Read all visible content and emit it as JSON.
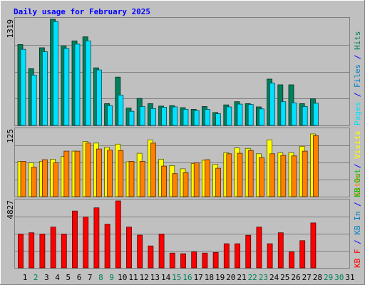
{
  "title": "Daily usage for February 2025",
  "colors": {
    "background": "#c0c0c0",
    "title": "#0000ff",
    "hits": "#00805c",
    "files": "#00e0ff",
    "visits": "#ffff00",
    "sites": "#ff8000",
    "kb_f": "#ff0000",
    "kb_in": "#0080c0",
    "kb_out": "#00c000",
    "day_weekday": "#000000",
    "day_weekend": "#00805c",
    "gridline": "#808080"
  },
  "chart_data": [
    {
      "type": "bar",
      "panel": "top",
      "max_label": "1319",
      "ylim": [
        0,
        1319
      ],
      "side_label": [
        {
          "text": "Pages",
          "color": "#00e0ff"
        },
        {
          "text": " / ",
          "color": "#0000ff"
        },
        {
          "text": "Files",
          "color": "#0080c0"
        },
        {
          "text": " / ",
          "color": "#0000ff"
        },
        {
          "text": "Hits",
          "color": "#00805c"
        }
      ],
      "categories": [
        "1",
        "2",
        "3",
        "4",
        "5",
        "6",
        "7",
        "8",
        "9",
        "10",
        "11",
        "12",
        "13",
        "14",
        "15",
        "16",
        "17",
        "18",
        "19",
        "20",
        "21",
        "22",
        "23",
        "24",
        "25",
        "26",
        "27",
        "28"
      ],
      "series": [
        {
          "name": "Hits",
          "color": "#00805c",
          "values": [
            1005,
            705,
            965,
            1319,
            985,
            1050,
            1100,
            715,
            270,
            600,
            215,
            335,
            270,
            240,
            245,
            220,
            200,
            235,
            160,
            255,
            295,
            270,
            230,
            575,
            505,
            505,
            270,
            330
          ]
        },
        {
          "name": "Files",
          "color": "#00e0ff",
          "values": [
            945,
            625,
            915,
            1290,
            955,
            1010,
            1050,
            690,
            245,
            375,
            175,
            235,
            210,
            225,
            230,
            200,
            185,
            200,
            145,
            230,
            265,
            260,
            205,
            525,
            295,
            280,
            235,
            275
          ]
        }
      ]
    },
    {
      "type": "bar",
      "panel": "middle",
      "max_label": "125",
      "ylim": [
        0,
        125
      ],
      "side_label": [
        {
          "text": "Sites",
          "color": "#ff8000"
        },
        {
          "text": " / ",
          "color": "#0000ff"
        },
        {
          "text": "Visits",
          "color": "#ffff00"
        }
      ],
      "categories": [
        "1",
        "2",
        "3",
        "4",
        "5",
        "6",
        "7",
        "8",
        "9",
        "10",
        "11",
        "12",
        "13",
        "14",
        "15",
        "16",
        "17",
        "18",
        "19",
        "20",
        "21",
        "22",
        "23",
        "24",
        "25",
        "26",
        "27",
        "28"
      ],
      "series": [
        {
          "name": "Visits",
          "color": "#ffff00",
          "values": [
            66,
            63,
            66,
            70,
            75,
            85,
            103,
            100,
            92,
            98,
            65,
            81,
            106,
            70,
            58,
            52,
            62,
            68,
            60,
            82,
            91,
            90,
            80,
            106,
            82,
            82,
            94,
            117
          ]
        },
        {
          "name": "Sites",
          "color": "#ff8000",
          "values": [
            66,
            55,
            69,
            63,
            85,
            85,
            100,
            89,
            87,
            86,
            66,
            66,
            100,
            57,
            43,
            45,
            63,
            69,
            53,
            80,
            81,
            86,
            73,
            80,
            77,
            76,
            85,
            114
          ]
        }
      ]
    },
    {
      "type": "bar",
      "panel": "bottom",
      "max_label": "4827",
      "ylim": [
        0,
        4827
      ],
      "side_label": [
        {
          "text": "KB F",
          "color": "#ff0000"
        },
        {
          "text": " / ",
          "color": "#0000ff"
        },
        {
          "text": "KB In",
          "color": "#0080c0"
        },
        {
          "text": " / ",
          "color": "#0000ff"
        },
        {
          "text": "KB Out",
          "color": "#00c000"
        }
      ],
      "categories": [
        "1",
        "2",
        "3",
        "4",
        "5",
        "6",
        "7",
        "8",
        "9",
        "10",
        "11",
        "12",
        "13",
        "14",
        "15",
        "16",
        "17",
        "18",
        "19",
        "20",
        "21",
        "22",
        "23",
        "24",
        "25",
        "26",
        "27",
        "28"
      ],
      "series": [
        {
          "name": "KB F",
          "color": "#ff0000",
          "values": [
            2440,
            2530,
            2440,
            2940,
            2440,
            4100,
            3670,
            4330,
            3150,
            4827,
            2940,
            2360,
            1580,
            2440,
            1070,
            1020,
            1150,
            1070,
            1110,
            1740,
            1740,
            2350,
            2940,
            1740,
            2530,
            1150,
            1960,
            3240
          ]
        }
      ]
    }
  ],
  "days": [
    {
      "label": "1",
      "weekend": false
    },
    {
      "label": "2",
      "weekend": true
    },
    {
      "label": "3",
      "weekend": false
    },
    {
      "label": "4",
      "weekend": false
    },
    {
      "label": "5",
      "weekend": false
    },
    {
      "label": "6",
      "weekend": false
    },
    {
      "label": "7",
      "weekend": false
    },
    {
      "label": "8",
      "weekend": true
    },
    {
      "label": "9",
      "weekend": true
    },
    {
      "label": "10",
      "weekend": false
    },
    {
      "label": "11",
      "weekend": false
    },
    {
      "label": "12",
      "weekend": false
    },
    {
      "label": "13",
      "weekend": false
    },
    {
      "label": "14",
      "weekend": false
    },
    {
      "label": "15",
      "weekend": true
    },
    {
      "label": "16",
      "weekend": true
    },
    {
      "label": "17",
      "weekend": false
    },
    {
      "label": "18",
      "weekend": false
    },
    {
      "label": "19",
      "weekend": false
    },
    {
      "label": "20",
      "weekend": false
    },
    {
      "label": "21",
      "weekend": false
    },
    {
      "label": "22",
      "weekend": true
    },
    {
      "label": "23",
      "weekend": true
    },
    {
      "label": "24",
      "weekend": false
    },
    {
      "label": "25",
      "weekend": false
    },
    {
      "label": "26",
      "weekend": false
    },
    {
      "label": "27",
      "weekend": false
    },
    {
      "label": "28",
      "weekend": false
    },
    {
      "label": "29",
      "weekend": true
    },
    {
      "label": "30",
      "weekend": true
    },
    {
      "label": "31",
      "weekend": false
    }
  ]
}
